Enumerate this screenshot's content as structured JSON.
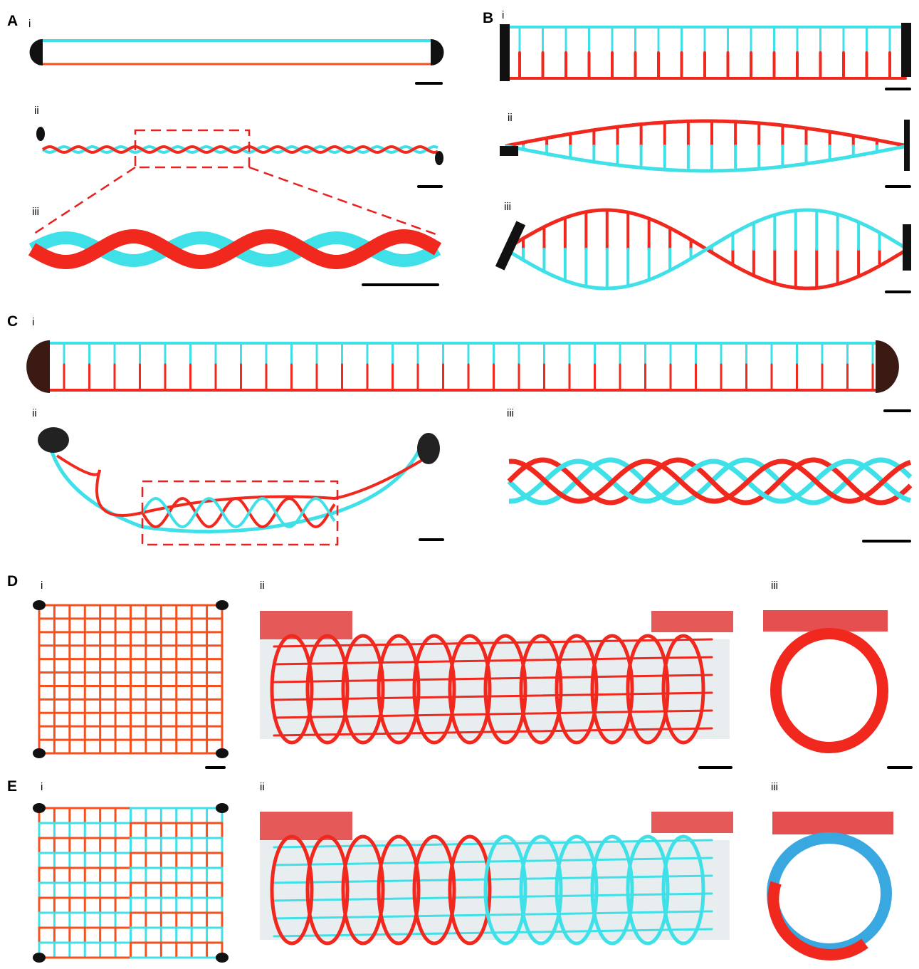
{
  "panels": [
    {
      "label": "A",
      "subpanels": [
        "i",
        "ii",
        "iii"
      ]
    },
    {
      "label": "B",
      "subpanels": [
        "i",
        "ii",
        "iii"
      ]
    },
    {
      "label": "C",
      "subpanels": [
        "i",
        "ii",
        "iii"
      ]
    },
    {
      "label": "D",
      "subpanels": [
        "i",
        "ii",
        "iii"
      ]
    },
    {
      "label": "E",
      "subpanels": [
        "i",
        "ii",
        "iii"
      ]
    }
  ]
}
